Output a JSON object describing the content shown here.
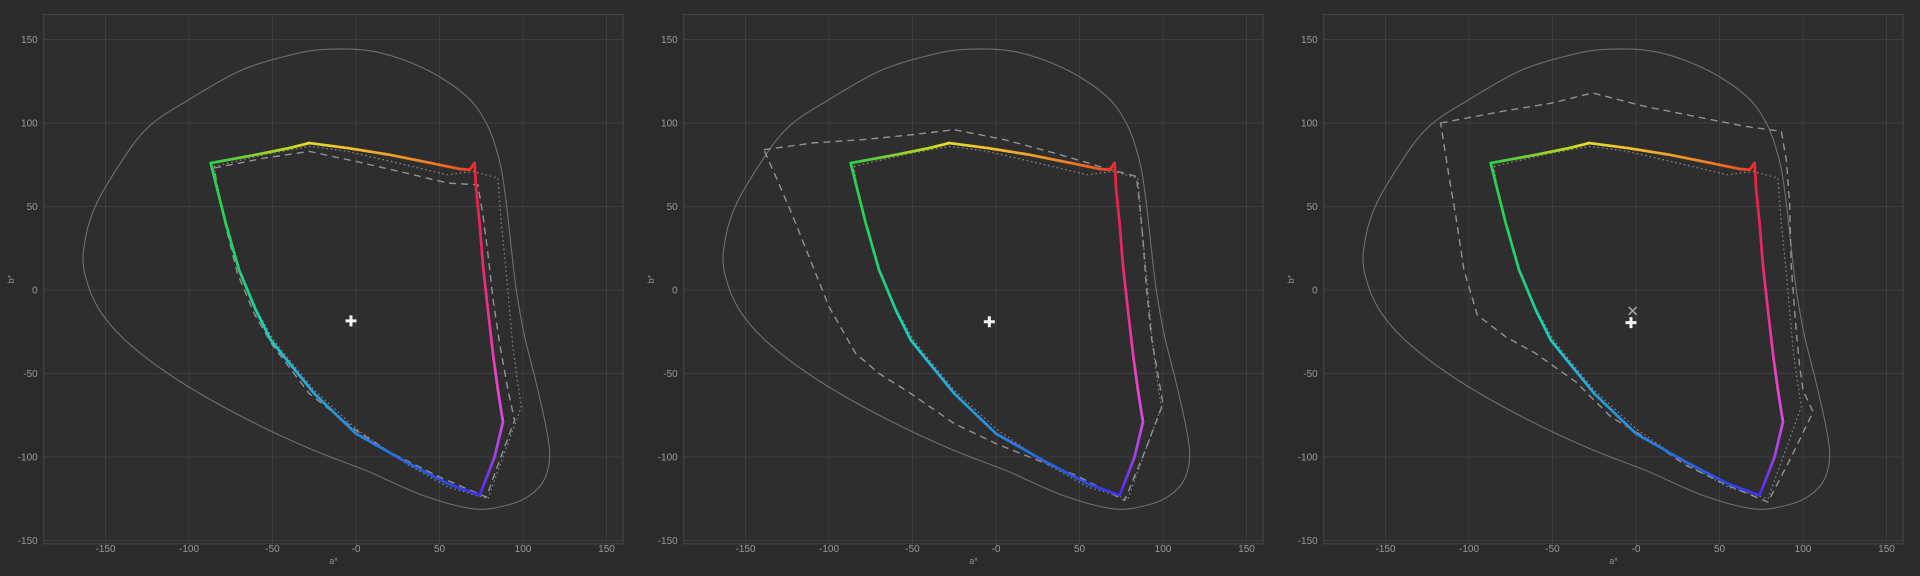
{
  "figure": {
    "background": "#2b2b2b",
    "plot_background": "#2e2e2e",
    "grid_color": "#3e3e3e",
    "border_color": "#464646",
    "tick_label_color": "#9b9b9b",
    "axis_title_color": "#8f8f8f",
    "locus_color": "#6f6f6f",
    "dashed_color": "#929292",
    "dotted_color": "#878787",
    "plus_marker_color": "#f2f2f2",
    "cross_marker_color": "#a8a8a8"
  },
  "chart_data": {
    "type": "line",
    "xlabel": "a*",
    "ylabel": "b*",
    "x_range": [
      -187,
      160
    ],
    "y_range": [
      -152,
      165
    ],
    "grid": true,
    "x_tick_labels": [
      "-150",
      "-100",
      "-50",
      "-0",
      "50",
      "100",
      "150"
    ],
    "x_tick_values": [
      -150,
      -100,
      -50,
      0,
      50,
      100,
      150
    ],
    "y_tick_labels": [
      "150",
      "100",
      "50",
      "0",
      "-50",
      "-100",
      "-150"
    ],
    "y_tick_values": [
      150,
      100,
      50,
      0,
      -50,
      -100,
      -150
    ],
    "panels": [
      {
        "name": "left-gamut-chart",
        "reference": "reference_1",
        "markers": [
          {
            "type": "plus",
            "a": -3,
            "b": -18.5
          }
        ]
      },
      {
        "name": "middle-gamut-chart",
        "reference": "reference_2",
        "markers": [
          {
            "type": "plus",
            "a": -4,
            "b": -19
          }
        ]
      },
      {
        "name": "right-gamut-chart",
        "reference": "reference_3",
        "markers": [
          {
            "type": "plus",
            "a": -3,
            "b": -19.5
          },
          {
            "type": "cross",
            "a": -2,
            "b": -12.5
          }
        ]
      }
    ],
    "series": {
      "spectral_locus": {
        "points": [
          [
            -20,
            144
          ],
          [
            10,
            143
          ],
          [
            40,
            133
          ],
          [
            65,
            117
          ],
          [
            78,
            100
          ],
          [
            86,
            77
          ],
          [
            90,
            52
          ],
          [
            93,
            25
          ],
          [
            96,
            0
          ],
          [
            101,
            -28
          ],
          [
            107,
            -52
          ],
          [
            113,
            -78
          ],
          [
            116,
            -98
          ],
          [
            113,
            -113
          ],
          [
            104,
            -123
          ],
          [
            90,
            -129
          ],
          [
            70,
            -131
          ],
          [
            40,
            -123
          ],
          [
            8,
            -109
          ],
          [
            -30,
            -94
          ],
          [
            -68,
            -76
          ],
          [
            -105,
            -55
          ],
          [
            -135,
            -33
          ],
          [
            -153,
            -13
          ],
          [
            -162,
            8
          ],
          [
            -163,
            25
          ],
          [
            -157,
            48
          ],
          [
            -143,
            73
          ],
          [
            -125,
            97
          ],
          [
            -100,
            114
          ],
          [
            -70,
            131
          ],
          [
            -42,
            140
          ]
        ]
      },
      "dotted_reference": {
        "points": [
          [
            -85,
            74
          ],
          [
            -55,
            81
          ],
          [
            -28,
            86
          ],
          [
            -5,
            83
          ],
          [
            25,
            76
          ],
          [
            55,
            69
          ],
          [
            70,
            71
          ],
          [
            85,
            67
          ],
          [
            87,
            40
          ],
          [
            90,
            10
          ],
          [
            94,
            -35
          ],
          [
            97,
            -57
          ],
          [
            99,
            -70
          ],
          [
            88,
            -100
          ],
          [
            79,
            -125
          ],
          [
            55,
            -118
          ],
          [
            30,
            -104
          ],
          [
            0,
            -83
          ],
          [
            -25,
            -60
          ],
          [
            -43,
            -38
          ],
          [
            -50,
            -29
          ],
          [
            -60,
            -11
          ],
          [
            -70,
            13
          ],
          [
            -78,
            41
          ],
          [
            -83,
            60
          ],
          [
            -85,
            74
          ]
        ]
      },
      "reference_1": {
        "points": [
          [
            -85,
            73
          ],
          [
            -55,
            79
          ],
          [
            -28,
            83
          ],
          [
            0,
            77
          ],
          [
            30,
            70
          ],
          [
            55,
            64
          ],
          [
            73,
            63
          ],
          [
            76,
            45
          ],
          [
            79,
            22
          ],
          [
            82,
            -5
          ],
          [
            86,
            -32
          ],
          [
            91,
            -60
          ],
          [
            95,
            -78
          ],
          [
            86,
            -102
          ],
          [
            78,
            -124
          ],
          [
            50,
            -112
          ],
          [
            20,
            -97
          ],
          [
            0,
            -84
          ],
          [
            -28,
            -62
          ],
          [
            -50,
            -33
          ],
          [
            -61,
            -14
          ],
          [
            -71,
            10
          ],
          [
            -78,
            38
          ],
          [
            -82,
            57
          ],
          [
            -85,
            73
          ]
        ]
      },
      "reference_2": {
        "points": [
          [
            -139,
            84
          ],
          [
            -110,
            88
          ],
          [
            -80,
            90
          ],
          [
            -50,
            93
          ],
          [
            -25,
            96
          ],
          [
            5,
            90
          ],
          [
            35,
            82
          ],
          [
            62,
            74
          ],
          [
            84,
            68
          ],
          [
            86,
            52
          ],
          [
            88,
            30
          ],
          [
            90,
            2
          ],
          [
            93,
            -28
          ],
          [
            96,
            -45
          ],
          [
            100,
            -68
          ],
          [
            89,
            -97
          ],
          [
            77,
            -126
          ],
          [
            48,
            -111
          ],
          [
            20,
            -100
          ],
          [
            0,
            -92
          ],
          [
            -25,
            -80
          ],
          [
            -51,
            -62
          ],
          [
            -70,
            -50
          ],
          [
            -84,
            -38
          ],
          [
            -100,
            -10
          ],
          [
            -110,
            15
          ],
          [
            -122,
            45
          ],
          [
            -131,
            66
          ],
          [
            -139,
            84
          ]
        ]
      },
      "reference_3": {
        "points": [
          [
            -117,
            100
          ],
          [
            -80,
            107
          ],
          [
            -50,
            112
          ],
          [
            -26,
            118
          ],
          [
            5,
            110
          ],
          [
            40,
            103
          ],
          [
            65,
            98
          ],
          [
            87,
            95
          ],
          [
            90,
            78
          ],
          [
            92,
            52
          ],
          [
            93,
            14
          ],
          [
            96,
            -25
          ],
          [
            98,
            -46
          ],
          [
            100,
            -60
          ],
          [
            106,
            -73
          ],
          [
            93,
            -100
          ],
          [
            79,
            -127
          ],
          [
            55,
            -117
          ],
          [
            30,
            -105
          ],
          [
            5,
            -88
          ],
          [
            -15,
            -76
          ],
          [
            -36,
            -55
          ],
          [
            -60,
            -38
          ],
          [
            -78,
            -28
          ],
          [
            -95,
            -15
          ],
          [
            -103,
            12
          ],
          [
            -108,
            45
          ],
          [
            -112,
            68
          ],
          [
            -117,
            100
          ]
        ]
      },
      "measured_gamut": {
        "points": [
          [
            -87,
            76
          ],
          [
            -60,
            81
          ],
          [
            -40,
            85
          ],
          [
            -28,
            88
          ],
          [
            -5,
            85
          ],
          [
            20,
            81
          ],
          [
            45,
            76
          ],
          [
            62,
            72.5
          ],
          [
            68,
            72
          ],
          [
            71,
            76
          ],
          [
            72,
            60
          ],
          [
            74,
            40
          ],
          [
            76,
            15
          ],
          [
            79,
            -12
          ],
          [
            82,
            -38
          ],
          [
            85,
            -60
          ],
          [
            88,
            -79
          ],
          [
            83,
            -100
          ],
          [
            74,
            -123
          ],
          [
            55,
            -116
          ],
          [
            30,
            -103
          ],
          [
            0,
            -86
          ],
          [
            -25,
            -62
          ],
          [
            -43,
            -40
          ],
          [
            -51,
            -30
          ],
          [
            -60,
            -12
          ],
          [
            -70,
            12
          ],
          [
            -78,
            40
          ],
          [
            -83,
            60
          ],
          [
            -87,
            76
          ]
        ],
        "colors": [
          "#2fd14a",
          "#86d229",
          "#bcd823",
          "#e6da2e",
          "#f0c22a",
          "#f0a229",
          "#ef7d26",
          "#ee5824",
          "#ed3d25",
          "#eb2a2e",
          "#ea2342",
          "#ea2458",
          "#eb2870",
          "#ed2f8e",
          "#ee39b0",
          "#ec44cd",
          "#d948e2",
          "#9b42ec",
          "#4b2cee",
          "#2a48e9",
          "#2765e3",
          "#2a87dd",
          "#26a3d8",
          "#21bbd3",
          "#1dcbc0",
          "#1bd29c",
          "#1fd374",
          "#26d25a",
          "#2bd14f",
          "#2fd14a"
        ]
      }
    }
  }
}
